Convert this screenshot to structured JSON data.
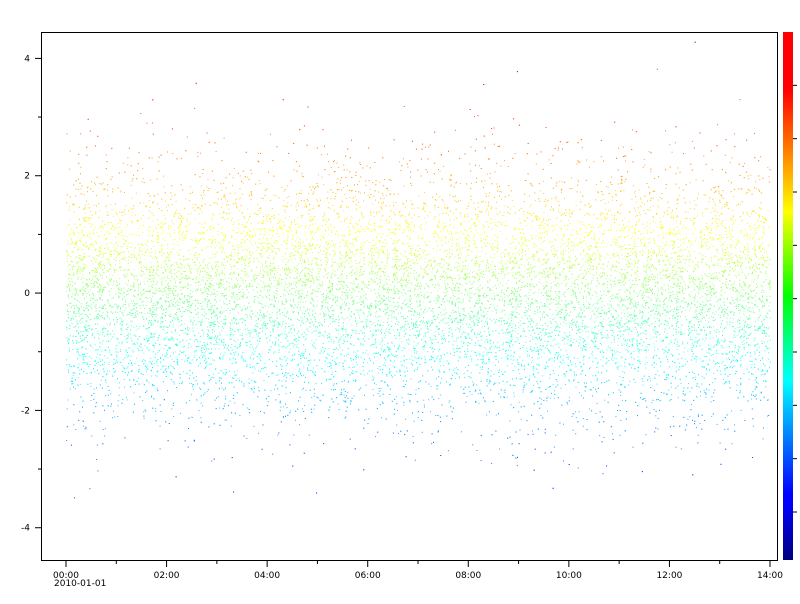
{
  "chart_data": {
    "type": "scatter",
    "title": "",
    "xlabel": "",
    "ylabel": "",
    "x_axis": {
      "kind": "time",
      "range": [
        "2010-01-01 00:00",
        "2010-01-01 14:00"
      ],
      "major_ticks": [
        "00:00",
        "02:00",
        "04:00",
        "06:00",
        "08:00",
        "10:00",
        "12:00",
        "14:00"
      ],
      "start_date_label": "2010-01-01",
      "minor_tick_step_hours": 1
    },
    "y_axis": {
      "ylim": [
        -4.55,
        4.45
      ],
      "ticks": [
        -4,
        -2,
        0,
        2,
        4
      ],
      "tick_labels": [
        "-4",
        "-2",
        "0",
        "2",
        "4"
      ],
      "minor_ticks": [
        -3,
        -1,
        1,
        3
      ]
    },
    "series": [
      {
        "color_by": "y",
        "colormap": "jet",
        "y_distribution": {
          "type": "normal",
          "mean": 0,
          "std": 1
        }
      }
    ],
    "colorbar": {
      "colormap": "jet",
      "range": [
        -4.55,
        4.45
      ],
      "labels": "none",
      "placement": "right"
    },
    "grid": false,
    "legend": "none"
  }
}
